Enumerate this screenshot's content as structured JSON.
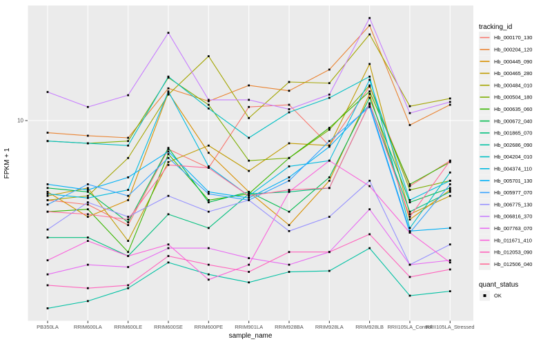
{
  "chart_data": {
    "type": "line",
    "title": "",
    "xlabel": "sample_name",
    "ylabel": "FPKM + 1",
    "y_scale": "log10",
    "y_tick_labels": [
      "10"
    ],
    "y_tick_values": [
      10
    ],
    "ylim": [
      1,
      37.7
    ],
    "grid": "on",
    "panel_bg": "#EBEBEB",
    "grid_color": "#FFFFFF",
    "point_color": "#000000",
    "point_shape": "square",
    "legend_position": "right",
    "legend_title": "tracking_id",
    "categories": [
      "PB350LA",
      "RRIM600LA",
      "RRIM600LE",
      "RRIM600SE",
      "RRIM600PE",
      "RRIM901LA",
      "RRIM928BA",
      "RRIM928LA",
      "RRIM928LB",
      "RRII105LA_Control",
      "RRII105LA_Stressed"
    ],
    "series": [
      {
        "name": "Hb_000170_130",
        "color": "#F8766D",
        "values": [
          4.0,
          3.8,
          3.0,
          7.2,
          5.8,
          11.7,
          12.0,
          7.5,
          14.8,
          4.7,
          6.3
        ]
      },
      {
        "name": "Hb_000204_120",
        "color": "#EA8331",
        "values": [
          8.7,
          8.4,
          8.2,
          14.5,
          12.5,
          15.0,
          14.1,
          18.0,
          29.9,
          9.5,
          12.0
        ]
      },
      {
        "name": "Hb_000445_090",
        "color": "#D89000",
        "values": [
          4.4,
          3.3,
          4.0,
          13.8,
          6.9,
          4.4,
          3.0,
          5.0,
          13.6,
          3.2,
          4.5
        ]
      },
      {
        "name": "Hb_000465_280",
        "color": "#C09B00",
        "values": [
          4.2,
          4.6,
          2.5,
          6.2,
          7.5,
          5.6,
          7.7,
          7.5,
          19.2,
          3.4,
          4.2
        ]
      },
      {
        "name": "Hb_000484_010",
        "color": "#A3A500",
        "values": [
          4.0,
          4.2,
          6.5,
          13.5,
          21.0,
          10.3,
          15.6,
          15.4,
          27.0,
          11.8,
          12.9
        ]
      },
      {
        "name": "Hb_000504_180",
        "color": "#7CAE00",
        "values": [
          7.9,
          7.7,
          7.9,
          16.4,
          12.0,
          6.3,
          6.5,
          9.0,
          15.0,
          4.5,
          5.0
        ]
      },
      {
        "name": "Hb_000635_060",
        "color": "#39B600",
        "values": [
          3.5,
          3.6,
          2.2,
          6.8,
          4.0,
          4.3,
          6.5,
          9.2,
          14.0,
          4.8,
          6.2
        ]
      },
      {
        "name": "Hb_000672_040",
        "color": "#00BB4E",
        "values": [
          4.6,
          4.4,
          3.1,
          7.3,
          3.9,
          4.4,
          3.5,
          5.2,
          13.0,
          3.9,
          4.6
        ]
      },
      {
        "name": "Hb_001865_070",
        "color": "#00BF7D",
        "values": [
          2.6,
          2.6,
          2.1,
          3.4,
          2.9,
          4.3,
          4.4,
          4.6,
          12.2,
          3.5,
          4.4
        ]
      },
      {
        "name": "Hb_002686_090",
        "color": "#00C1A3",
        "values": [
          1.15,
          1.25,
          1.45,
          1.95,
          1.7,
          1.55,
          1.75,
          1.77,
          2.3,
          1.33,
          1.4
        ]
      },
      {
        "name": "Hb_004204_010",
        "color": "#00BFC4",
        "values": [
          7.9,
          7.7,
          7.5,
          16.6,
          11.5,
          8.2,
          11.0,
          13.0,
          16.6,
          2.9,
          5.5
        ]
      },
      {
        "name": "Hb_004374_110",
        "color": "#00BAE0",
        "values": [
          4.3,
          4.1,
          4.5,
          14.0,
          5.9,
          4.2,
          5.9,
          6.3,
          16.0,
          4.0,
          5.0
        ]
      },
      {
        "name": "Hb_005701_130",
        "color": "#00B0F6",
        "values": [
          4.8,
          4.5,
          5.2,
          7.0,
          4.4,
          4.1,
          5.2,
          7.4,
          12.0,
          2.8,
          2.9
        ]
      },
      {
        "name": "Hb_005977_070",
        "color": "#35A2FF",
        "values": [
          3.8,
          4.8,
          4.2,
          6.5,
          4.3,
          4.0,
          5.0,
          7.9,
          11.7,
          2.75,
          4.8
        ]
      },
      {
        "name": "Hb_006775_130",
        "color": "#9590FF",
        "values": [
          2.85,
          3.9,
          3.3,
          4.2,
          3.5,
          4.0,
          2.8,
          3.3,
          5.0,
          1.9,
          2.4
        ]
      },
      {
        "name": "Hb_006816_370",
        "color": "#C77CFF",
        "values": [
          13.9,
          11.7,
          13.4,
          27.5,
          12.7,
          12.7,
          11.4,
          13.5,
          32.6,
          10.9,
          12.4
        ]
      },
      {
        "name": "Hb_007763_070",
        "color": "#E76BF3",
        "values": [
          1.7,
          1.9,
          1.85,
          2.3,
          2.3,
          2.05,
          1.9,
          2.2,
          3.6,
          1.9,
          2.0
        ]
      },
      {
        "name": "Hb_011671_410",
        "color": "#FA62DB",
        "values": [
          2.0,
          2.5,
          2.1,
          2.4,
          1.6,
          1.9,
          4.4,
          6.3,
          4.7,
          2.75,
          1.95
        ]
      },
      {
        "name": "Hb_012053_090",
        "color": "#FF62BC",
        "values": [
          1.5,
          1.45,
          1.5,
          2.1,
          1.9,
          1.75,
          2.2,
          2.2,
          2.7,
          1.65,
          1.8
        ]
      },
      {
        "name": "Hb_012506_040",
        "color": "#FF6A98",
        "values": [
          3.5,
          3.4,
          3.2,
          6.0,
          5.8,
          4.2,
          4.5,
          4.6,
          12.2,
          3.3,
          6.3
        ]
      }
    ],
    "quant_legend": {
      "title": "quant_status",
      "items": [
        {
          "label": "OK",
          "symbol": "black-square"
        }
      ]
    }
  }
}
